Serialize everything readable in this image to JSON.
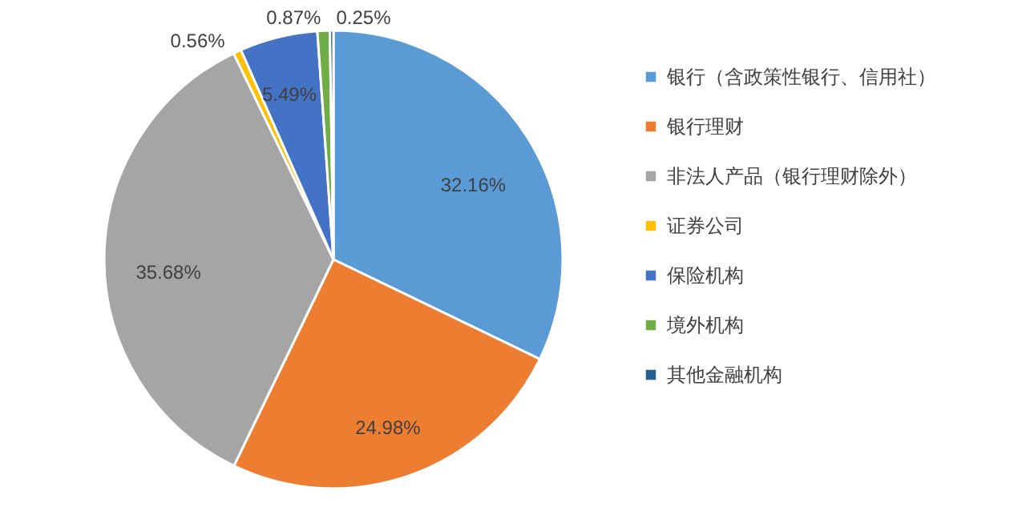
{
  "chart_data": {
    "type": "pie",
    "categories": [
      "银行（含政策性银行、信用社）",
      "银行理财",
      "非法人产品（银行理财除外）",
      "证券公司",
      "保险机构",
      "境外机构",
      "其他金融机构"
    ],
    "values": [
      32.16,
      24.98,
      35.68,
      0.56,
      5.49,
      0.87,
      0.25
    ],
    "colors": [
      "#5b9bd5",
      "#ed7d31",
      "#a5a5a5",
      "#ffc000",
      "#4472c4",
      "#70ad47",
      "#255e91"
    ],
    "value_labels": [
      "32.16%",
      "24.98%",
      "35.68%",
      "0.56%",
      "5.49%",
      "0.87%",
      "0.25%"
    ],
    "legend": "right"
  }
}
